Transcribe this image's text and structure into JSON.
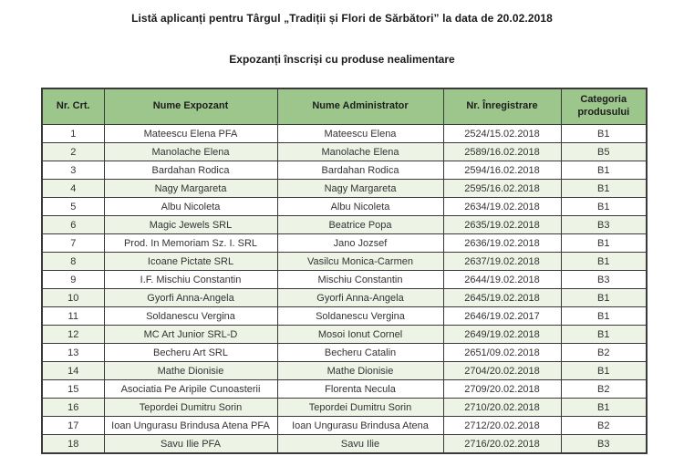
{
  "document": {
    "title": "Listă aplicanți pentru Târgul „Tradiții și Flori de Sărbători” la data de 20.02.2018",
    "subtitle": "Expozanți înscriși cu produse nealimentare"
  },
  "table": {
    "columns": [
      "Nr. Crt.",
      "Nume Expozant",
      "Nume Administrator",
      "Nr. Înregistrare",
      "Categoria produsului"
    ],
    "rows": [
      [
        "1",
        "Mateescu Elena PFA",
        "Mateescu Elena",
        "2524/15.02.2018",
        "B1"
      ],
      [
        "2",
        "Manolache Elena",
        "Manolache Elena",
        "2589/16.02.2018",
        "B5"
      ],
      [
        "3",
        "Bardahan Rodica",
        "Bardahan Rodica",
        "2594/16.02.2018",
        "B1"
      ],
      [
        "4",
        "Nagy Margareta",
        "Nagy Margareta",
        "2595/16.02.2018",
        "B1"
      ],
      [
        "5",
        "Albu Nicoleta",
        "Albu Nicoleta",
        "2634/19.02.2018",
        "B1"
      ],
      [
        "6",
        "Magic Jewels SRL",
        "Beatrice Popa",
        "2635/19.02.2018",
        "B3"
      ],
      [
        "7",
        "Prod. In Memoriam Sz. I. SRL",
        "Jano Jozsef",
        "2636/19.02.2018",
        "B1"
      ],
      [
        "8",
        "Icoane Pictate SRL",
        "Vasilcu Monica-Carmen",
        "2637/19.02.2018",
        "B1"
      ],
      [
        "9",
        "I.F. Mischiu Constantin",
        "Mischiu Constantin",
        "2644/19.02.2018",
        "B3"
      ],
      [
        "10",
        "Gyorfi Anna-Angela",
        "Gyorfi Anna-Angela",
        "2645/19.02.2018",
        "B1"
      ],
      [
        "11",
        "Soldanescu Vergina",
        "Soldanescu Vergina",
        "2646/19.02.2017",
        "B1"
      ],
      [
        "12",
        "MC Art Junior SRL-D",
        "Mosoi Ionut Cornel",
        "2649/19.02.2018",
        "B1"
      ],
      [
        "13",
        "Becheru Art SRL",
        "Becheru Catalin",
        "2651/09.02.2018",
        "B2"
      ],
      [
        "14",
        "Mathe Dionisie",
        "Mathe Dionisie",
        "2704/20.02.2018",
        "B1"
      ],
      [
        "15",
        "Asociatia Pe Aripile Cunoasterii",
        "Florenta Necula",
        "2709/20.02.2018",
        "B2"
      ],
      [
        "16",
        "Tepordei Dumitru Sorin",
        "Tepordei Dumitru Sorin",
        "2710/20.02.2018",
        "B1"
      ],
      [
        "17",
        "Ioan Ungurasu Brindusa Atena PFA",
        "Ioan Ungurasu Brindusa Atena",
        "2712/20.02.2018",
        "B2"
      ],
      [
        "18",
        "Savu Ilie PFA",
        "Savu Ilie",
        "2716/20.02.2018",
        "B3"
      ]
    ]
  },
  "colors": {
    "header_bg": "#9cc68b",
    "row_alt_bg": "#edf3e5",
    "border": "#3a3a3a",
    "text": "#262626"
  }
}
